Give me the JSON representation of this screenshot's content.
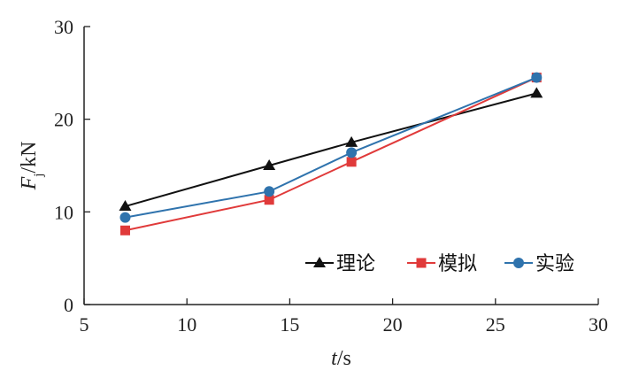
{
  "chart_data": {
    "type": "line",
    "title": "",
    "xlabel": {
      "var": "t",
      "unit": "/s"
    },
    "ylabel": {
      "var": "F",
      "sub": "j",
      "unit": "/kN"
    },
    "xlim": [
      5,
      30
    ],
    "ylim": [
      0,
      30
    ],
    "xticks": [
      5,
      10,
      15,
      20,
      25,
      30
    ],
    "yticks": [
      0,
      10,
      20,
      30
    ],
    "grid": false,
    "legend_position": "bottom-right",
    "x": [
      7,
      14,
      18,
      27
    ],
    "series": [
      {
        "name": "理论",
        "values": [
          10.6,
          15.0,
          17.5,
          22.8
        ],
        "color": "#111111",
        "marker": "triangle"
      },
      {
        "name": "模拟",
        "values": [
          8.0,
          11.3,
          15.4,
          24.5
        ],
        "color": "#e03a3a",
        "marker": "square"
      },
      {
        "name": "实验",
        "values": [
          9.4,
          12.2,
          16.4,
          24.5
        ],
        "color": "#2f73ad",
        "marker": "circle"
      }
    ]
  }
}
